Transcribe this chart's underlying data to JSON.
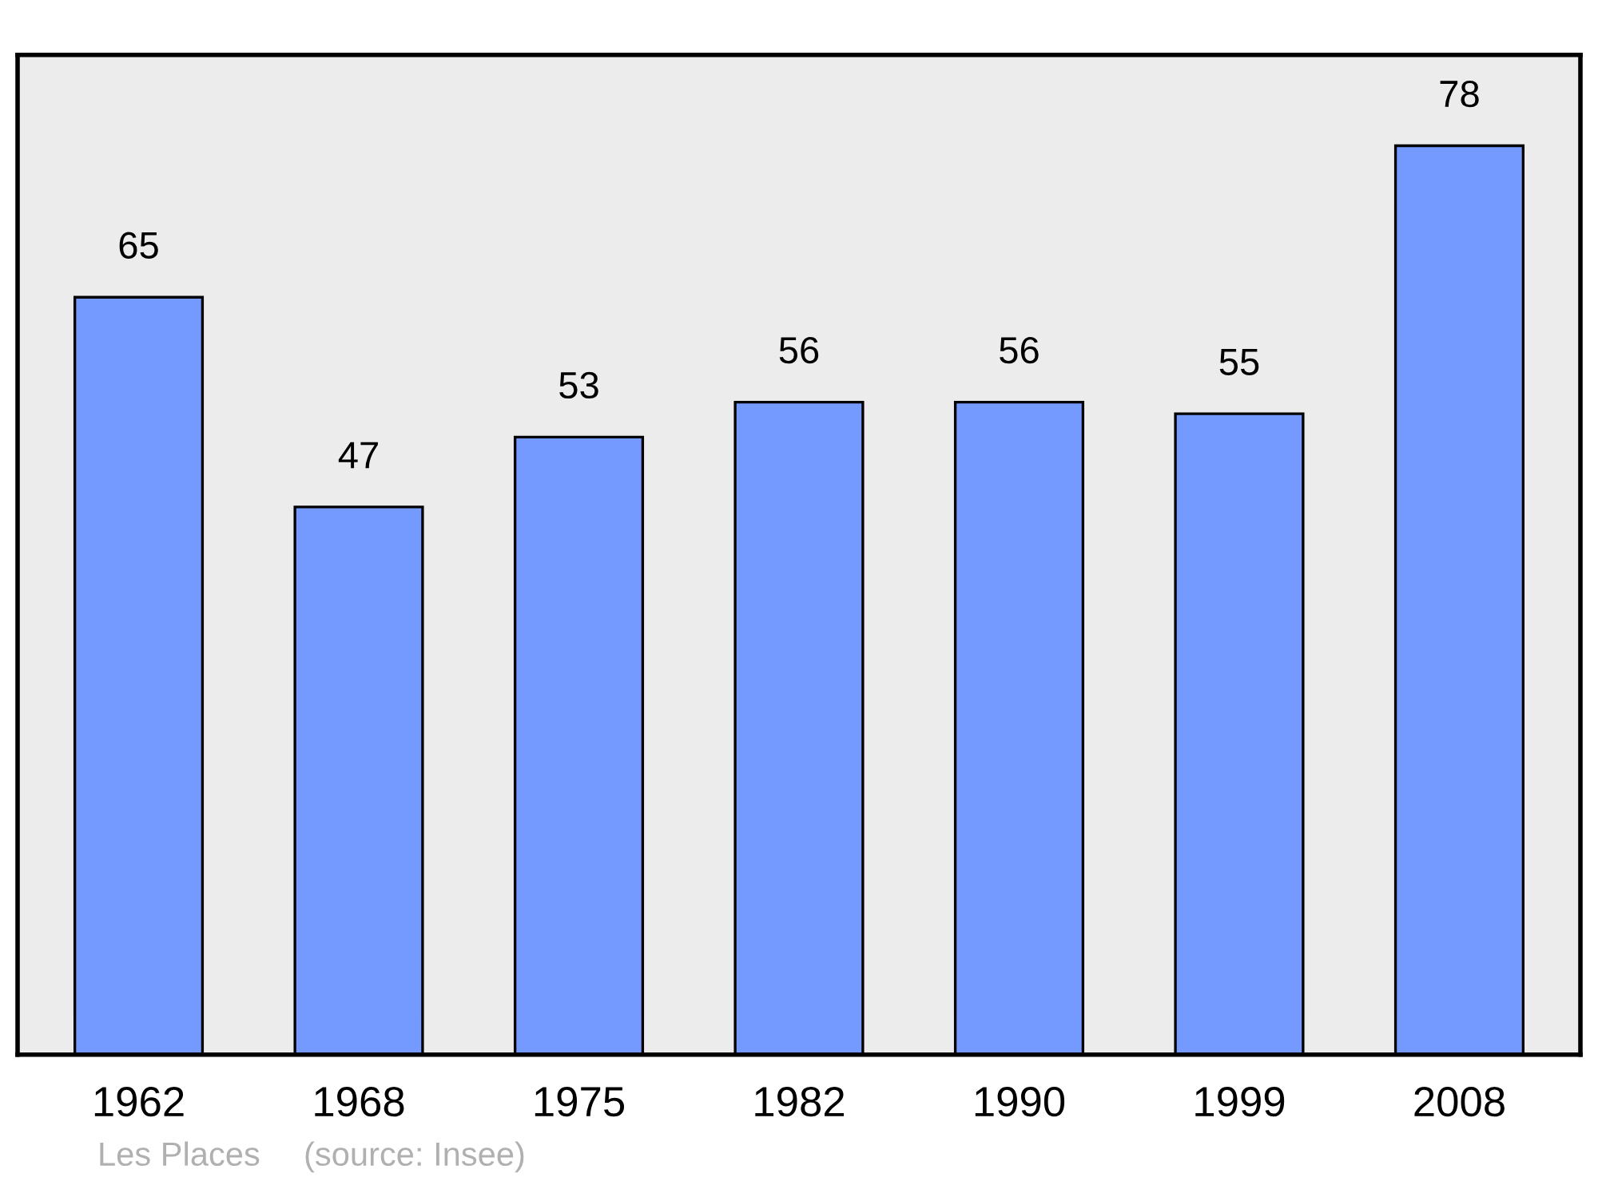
{
  "chart_data": {
    "type": "bar",
    "categories": [
      "1962",
      "1968",
      "1975",
      "1982",
      "1990",
      "1999",
      "2008"
    ],
    "values": [
      65,
      47,
      53,
      56,
      56,
      55,
      78
    ],
    "color": "#7499ff",
    "data_labels": true,
    "grid": false,
    "legend": false,
    "annotations": [
      "Les Places",
      "(source: Insee)"
    ]
  }
}
